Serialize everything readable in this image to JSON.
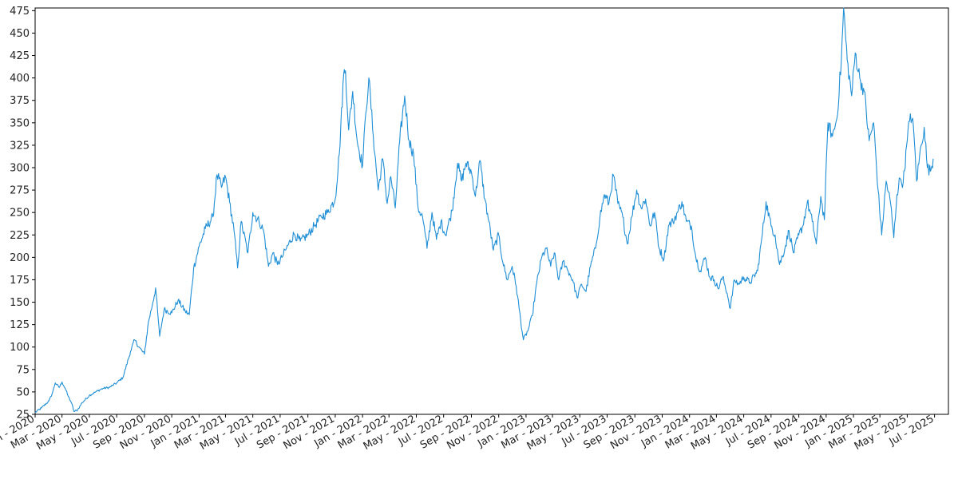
{
  "chart_data": {
    "type": "line",
    "title": "",
    "xlabel": "",
    "ylabel": "",
    "grid": false,
    "legend": "none",
    "line_color": "#1f8fd6",
    "xlim": [
      "2020-01-01",
      "2025-08-01"
    ],
    "ylim": [
      25,
      478
    ],
    "yticks": [
      25,
      50,
      75,
      100,
      125,
      150,
      175,
      200,
      225,
      250,
      275,
      300,
      325,
      350,
      375,
      400,
      425,
      450,
      475
    ],
    "xticks": [
      {
        "date": "2020-01-01",
        "label": "Jan - 2020"
      },
      {
        "date": "2020-03-01",
        "label": "Mar - 2020"
      },
      {
        "date": "2020-05-01",
        "label": "May - 2020"
      },
      {
        "date": "2020-07-01",
        "label": "Jul - 2020"
      },
      {
        "date": "2020-09-01",
        "label": "Sep - 2020"
      },
      {
        "date": "2020-11-01",
        "label": "Nov - 2020"
      },
      {
        "date": "2021-01-01",
        "label": "Jan - 2021"
      },
      {
        "date": "2021-03-01",
        "label": "Mar - 2021"
      },
      {
        "date": "2021-05-01",
        "label": "May - 2021"
      },
      {
        "date": "2021-07-01",
        "label": "Jul - 2021"
      },
      {
        "date": "2021-09-01",
        "label": "Sep - 2021"
      },
      {
        "date": "2021-11-01",
        "label": "Nov - 2021"
      },
      {
        "date": "2022-01-01",
        "label": "Jan - 2022"
      },
      {
        "date": "2022-03-01",
        "label": "Mar - 2022"
      },
      {
        "date": "2022-05-01",
        "label": "May - 2022"
      },
      {
        "date": "2022-07-01",
        "label": "Jul - 2022"
      },
      {
        "date": "2022-09-01",
        "label": "Sep - 2022"
      },
      {
        "date": "2022-11-01",
        "label": "Nov - 2022"
      },
      {
        "date": "2023-01-01",
        "label": "Jan - 2023"
      },
      {
        "date": "2023-03-01",
        "label": "Mar - 2023"
      },
      {
        "date": "2023-05-01",
        "label": "May - 2023"
      },
      {
        "date": "2023-07-01",
        "label": "Jul - 2023"
      },
      {
        "date": "2023-09-01",
        "label": "Sep - 2023"
      },
      {
        "date": "2023-11-01",
        "label": "Nov - 2023"
      },
      {
        "date": "2024-01-01",
        "label": "Jan - 2024"
      },
      {
        "date": "2024-03-01",
        "label": "Mar - 2024"
      },
      {
        "date": "2024-05-01",
        "label": "May - 2024"
      },
      {
        "date": "2024-07-01",
        "label": "Jul - 2024"
      },
      {
        "date": "2024-09-01",
        "label": "Sep - 2024"
      },
      {
        "date": "2024-11-01",
        "label": "Nov - 2024"
      },
      {
        "date": "2025-01-01",
        "label": "Jan - 2025"
      },
      {
        "date": "2025-03-01",
        "label": "Mar - 2025"
      },
      {
        "date": "2025-05-01",
        "label": "May - 2025"
      },
      {
        "date": "2025-07-01",
        "label": "Jul - 2025"
      }
    ],
    "series": [
      {
        "points": [
          [
            "2020-01-01",
            27
          ],
          [
            "2020-01-15",
            32
          ],
          [
            "2020-02-01",
            40
          ],
          [
            "2020-02-08",
            48
          ],
          [
            "2020-02-15",
            60
          ],
          [
            "2020-02-24",
            55
          ],
          [
            "2020-03-01",
            61
          ],
          [
            "2020-03-08",
            54
          ],
          [
            "2020-03-15",
            45
          ],
          [
            "2020-03-22",
            38
          ],
          [
            "2020-03-28",
            28
          ],
          [
            "2020-04-05",
            30
          ],
          [
            "2020-04-15",
            38
          ],
          [
            "2020-05-01",
            46
          ],
          [
            "2020-05-15",
            50
          ],
          [
            "2020-06-01",
            54
          ],
          [
            "2020-06-15",
            55
          ],
          [
            "2020-07-01",
            60
          ],
          [
            "2020-07-15",
            66
          ],
          [
            "2020-08-01",
            95
          ],
          [
            "2020-08-10",
            108
          ],
          [
            "2020-08-20",
            100
          ],
          [
            "2020-09-01",
            92
          ],
          [
            "2020-09-10",
            128
          ],
          [
            "2020-09-20",
            150
          ],
          [
            "2020-09-26",
            166
          ],
          [
            "2020-10-05",
            112
          ],
          [
            "2020-10-15",
            142
          ],
          [
            "2020-11-01",
            138
          ],
          [
            "2020-11-15",
            152
          ],
          [
            "2020-12-01",
            140
          ],
          [
            "2020-12-10",
            136
          ],
          [
            "2020-12-20",
            188
          ],
          [
            "2021-01-01",
            212
          ],
          [
            "2021-01-15",
            232
          ],
          [
            "2021-02-01",
            245
          ],
          [
            "2021-02-10",
            292
          ],
          [
            "2021-02-20",
            278
          ],
          [
            "2021-03-01",
            290
          ],
          [
            "2021-03-10",
            262
          ],
          [
            "2021-03-20",
            230
          ],
          [
            "2021-03-28",
            188
          ],
          [
            "2021-04-05",
            240
          ],
          [
            "2021-04-20",
            205
          ],
          [
            "2021-05-01",
            250
          ],
          [
            "2021-05-15",
            240
          ],
          [
            "2021-05-25",
            230
          ],
          [
            "2021-06-05",
            190
          ],
          [
            "2021-06-15",
            205
          ],
          [
            "2021-06-25",
            192
          ],
          [
            "2021-07-05",
            200
          ],
          [
            "2021-07-15",
            210
          ],
          [
            "2021-08-01",
            226
          ],
          [
            "2021-08-15",
            218
          ],
          [
            "2021-09-01",
            225
          ],
          [
            "2021-09-15",
            235
          ],
          [
            "2021-10-01",
            245
          ],
          [
            "2021-10-15",
            250
          ],
          [
            "2021-11-01",
            265
          ],
          [
            "2021-11-10",
            315
          ],
          [
            "2021-11-20",
            405
          ],
          [
            "2021-11-24",
            408
          ],
          [
            "2021-12-01",
            342
          ],
          [
            "2021-12-10",
            385
          ],
          [
            "2021-12-20",
            330
          ],
          [
            "2022-01-01",
            302
          ],
          [
            "2022-01-08",
            360
          ],
          [
            "2022-01-15",
            400
          ],
          [
            "2022-01-25",
            335
          ],
          [
            "2022-02-05",
            275
          ],
          [
            "2022-02-15",
            310
          ],
          [
            "2022-02-25",
            260
          ],
          [
            "2022-03-05",
            290
          ],
          [
            "2022-03-15",
            255
          ],
          [
            "2022-03-25",
            330
          ],
          [
            "2022-04-05",
            380
          ],
          [
            "2022-04-15",
            330
          ],
          [
            "2022-04-25",
            315
          ],
          [
            "2022-05-05",
            255
          ],
          [
            "2022-05-15",
            245
          ],
          [
            "2022-05-25",
            210
          ],
          [
            "2022-06-05",
            250
          ],
          [
            "2022-06-15",
            220
          ],
          [
            "2022-06-25",
            240
          ],
          [
            "2022-07-05",
            225
          ],
          [
            "2022-07-20",
            252
          ],
          [
            "2022-08-01",
            305
          ],
          [
            "2022-08-10",
            285
          ],
          [
            "2022-08-20",
            305
          ],
          [
            "2022-09-01",
            295
          ],
          [
            "2022-09-10",
            268
          ],
          [
            "2022-09-20",
            308
          ],
          [
            "2022-10-01",
            265
          ],
          [
            "2022-10-10",
            240
          ],
          [
            "2022-10-20",
            208
          ],
          [
            "2022-11-01",
            225
          ],
          [
            "2022-11-10",
            195
          ],
          [
            "2022-11-20",
            175
          ],
          [
            "2022-12-01",
            190
          ],
          [
            "2022-12-10",
            168
          ],
          [
            "2022-12-20",
            130
          ],
          [
            "2022-12-26",
            108
          ],
          [
            "2023-01-05",
            118
          ],
          [
            "2023-01-15",
            135
          ],
          [
            "2023-01-25",
            172
          ],
          [
            "2023-02-05",
            200
          ],
          [
            "2023-02-15",
            210
          ],
          [
            "2023-02-25",
            190
          ],
          [
            "2023-03-05",
            205
          ],
          [
            "2023-03-15",
            175
          ],
          [
            "2023-03-25",
            196
          ],
          [
            "2023-04-05",
            185
          ],
          [
            "2023-04-15",
            175
          ],
          [
            "2023-04-25",
            155
          ],
          [
            "2023-05-05",
            170
          ],
          [
            "2023-05-15",
            162
          ],
          [
            "2023-05-25",
            190
          ],
          [
            "2023-06-05",
            210
          ],
          [
            "2023-06-15",
            245
          ],
          [
            "2023-06-25",
            270
          ],
          [
            "2023-07-05",
            260
          ],
          [
            "2023-07-15",
            292
          ],
          [
            "2023-07-25",
            260
          ],
          [
            "2023-08-05",
            245
          ],
          [
            "2023-08-15",
            215
          ],
          [
            "2023-08-25",
            245
          ],
          [
            "2023-09-05",
            275
          ],
          [
            "2023-09-15",
            255
          ],
          [
            "2023-09-25",
            265
          ],
          [
            "2023-10-05",
            235
          ],
          [
            "2023-10-15",
            250
          ],
          [
            "2023-10-25",
            210
          ],
          [
            "2023-11-05",
            198
          ],
          [
            "2023-11-15",
            235
          ],
          [
            "2023-11-25",
            240
          ],
          [
            "2023-12-05",
            250
          ],
          [
            "2023-12-15",
            262
          ],
          [
            "2023-12-25",
            240
          ],
          [
            "2024-01-05",
            235
          ],
          [
            "2024-01-15",
            200
          ],
          [
            "2024-01-25",
            185
          ],
          [
            "2024-02-05",
            200
          ],
          [
            "2024-02-15",
            178
          ],
          [
            "2024-02-25",
            175
          ],
          [
            "2024-03-05",
            165
          ],
          [
            "2024-03-15",
            178
          ],
          [
            "2024-03-25",
            160
          ],
          [
            "2024-04-01",
            143
          ],
          [
            "2024-04-10",
            175
          ],
          [
            "2024-04-20",
            170
          ],
          [
            "2024-05-01",
            178
          ],
          [
            "2024-05-15",
            172
          ],
          [
            "2024-06-01",
            185
          ],
          [
            "2024-06-10",
            220
          ],
          [
            "2024-06-20",
            262
          ],
          [
            "2024-07-01",
            235
          ],
          [
            "2024-07-10",
            225
          ],
          [
            "2024-07-20",
            192
          ],
          [
            "2024-08-01",
            210
          ],
          [
            "2024-08-10",
            230
          ],
          [
            "2024-08-20",
            205
          ],
          [
            "2024-09-01",
            225
          ],
          [
            "2024-09-10",
            235
          ],
          [
            "2024-09-20",
            262
          ],
          [
            "2024-10-01",
            240
          ],
          [
            "2024-10-10",
            215
          ],
          [
            "2024-10-20",
            268
          ],
          [
            "2024-10-28",
            242
          ],
          [
            "2024-11-05",
            350
          ],
          [
            "2024-11-15",
            335
          ],
          [
            "2024-11-25",
            355
          ],
          [
            "2024-12-05",
            420
          ],
          [
            "2024-12-10",
            478
          ],
          [
            "2024-12-18",
            420
          ],
          [
            "2024-12-28",
            380
          ],
          [
            "2025-01-05",
            428
          ],
          [
            "2025-01-15",
            400
          ],
          [
            "2025-01-25",
            385
          ],
          [
            "2025-02-05",
            330
          ],
          [
            "2025-02-15",
            350
          ],
          [
            "2025-02-25",
            275
          ],
          [
            "2025-03-05",
            225
          ],
          [
            "2025-03-15",
            285
          ],
          [
            "2025-03-25",
            260
          ],
          [
            "2025-04-01",
            222
          ],
          [
            "2025-04-08",
            270
          ],
          [
            "2025-04-15",
            288
          ],
          [
            "2025-04-22",
            283
          ],
          [
            "2025-05-01",
            330
          ],
          [
            "2025-05-08",
            360
          ],
          [
            "2025-05-15",
            345
          ],
          [
            "2025-05-22",
            285
          ],
          [
            "2025-06-01",
            325
          ],
          [
            "2025-06-08",
            345
          ],
          [
            "2025-06-15",
            300
          ],
          [
            "2025-06-22",
            296
          ],
          [
            "2025-06-28",
            310
          ]
        ]
      }
    ]
  }
}
